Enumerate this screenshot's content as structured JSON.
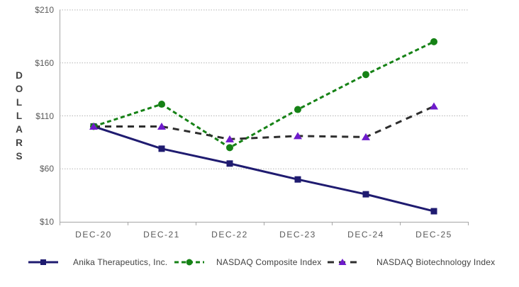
{
  "chart_data": {
    "type": "line",
    "title": "",
    "xlabel": "",
    "ylabel": "DOLLARS",
    "categories": [
      "DEC-20",
      "DEC-21",
      "DEC-22",
      "DEC-23",
      "DEC-24",
      "DEC-25"
    ],
    "y_ticks": [
      {
        "label": "$210",
        "value": 210
      },
      {
        "label": "$160",
        "value": 160
      },
      {
        "label": "$110",
        "value": 110
      },
      {
        "label": "$60",
        "value": 60
      },
      {
        "label": "$10",
        "value": 10
      }
    ],
    "ylim": [
      10,
      210
    ],
    "grid": "horizontal-dotted",
    "legend_position": "bottom",
    "series": [
      {
        "name": "Anika Therapeutics, Inc.",
        "color": "#1F1B70",
        "marker": "square",
        "line_style": "solid",
        "values": [
          100,
          79,
          65,
          50,
          36,
          20
        ]
      },
      {
        "name": "NASDAQ Composite Index",
        "color": "#168216",
        "marker": "circle",
        "line_style": "dashed",
        "values": [
          100,
          121,
          80,
          116,
          149,
          180
        ]
      },
      {
        "name": "NASDAQ Biotechnology Index",
        "color": "#2E2E2E",
        "marker_color": "#6E1BCB",
        "marker": "triangle",
        "line_style": "long-dashed",
        "values": [
          100,
          100,
          88,
          91,
          90,
          119
        ]
      }
    ],
    "colors": {
      "gridline": "#B3B3B3",
      "axis": "#A6A6A6",
      "tick_text": "#595959",
      "axis_title_text": "#414141",
      "legend_text": "#404040"
    }
  }
}
